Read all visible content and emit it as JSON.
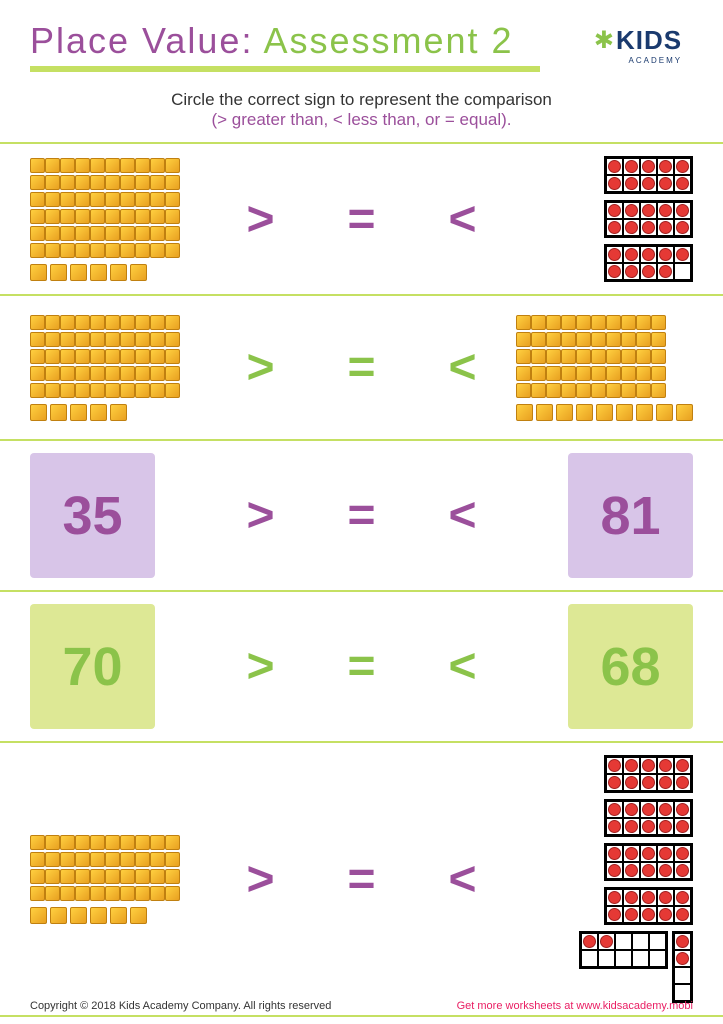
{
  "header": {
    "title_main": "Place Value:",
    "title_sub": "Assessment 2",
    "logo_text": "KIDS",
    "logo_sub": "ACADEMY"
  },
  "instructions": {
    "line1": "Circle the correct sign to represent the comparison",
    "line2": "(> greater than, < less than, or = equal)."
  },
  "colors": {
    "purple": "#9b4f9b",
    "green": "#8bc34a",
    "lime": "#c5e063",
    "block_fill": "#ffd040",
    "dot_fill": "#e53935"
  },
  "rows": [
    {
      "left_type": "blocks",
      "left_tens": 6,
      "left_ones": 6,
      "right_type": "tenframe",
      "right_full": 2,
      "right_partial": 9,
      "sign_colors": [
        "purple",
        "purple",
        "purple"
      ]
    },
    {
      "left_type": "blocks",
      "left_tens": 5,
      "left_ones": 5,
      "right_type": "blocks",
      "right_tens": 5,
      "right_ones": 9,
      "sign_colors": [
        "green",
        "green",
        "green"
      ]
    },
    {
      "left_type": "number",
      "left_value": "35",
      "left_box": "purple",
      "right_type": "number",
      "right_value": "81",
      "right_box": "purple",
      "sign_colors": [
        "purple",
        "purple",
        "purple"
      ]
    },
    {
      "left_type": "number",
      "left_value": "70",
      "left_box": "green",
      "right_type": "number",
      "right_value": "68",
      "right_box": "green",
      "sign_colors": [
        "green",
        "green",
        "green"
      ]
    },
    {
      "left_type": "blocks",
      "left_tens": 4,
      "left_ones": 6,
      "right_type": "tenframe",
      "right_full": 4,
      "right_partial": 2,
      "right_side_partial": 2,
      "sign_colors": [
        "purple",
        "purple",
        "purple"
      ]
    }
  ],
  "signs": {
    "gt": ">",
    "eq": "=",
    "lt": "<"
  },
  "footer": {
    "copyright": "Copyright © 2018 Kids Academy Company. All rights reserved",
    "link": "Get more worksheets at www.kidsacademy.mobi"
  }
}
